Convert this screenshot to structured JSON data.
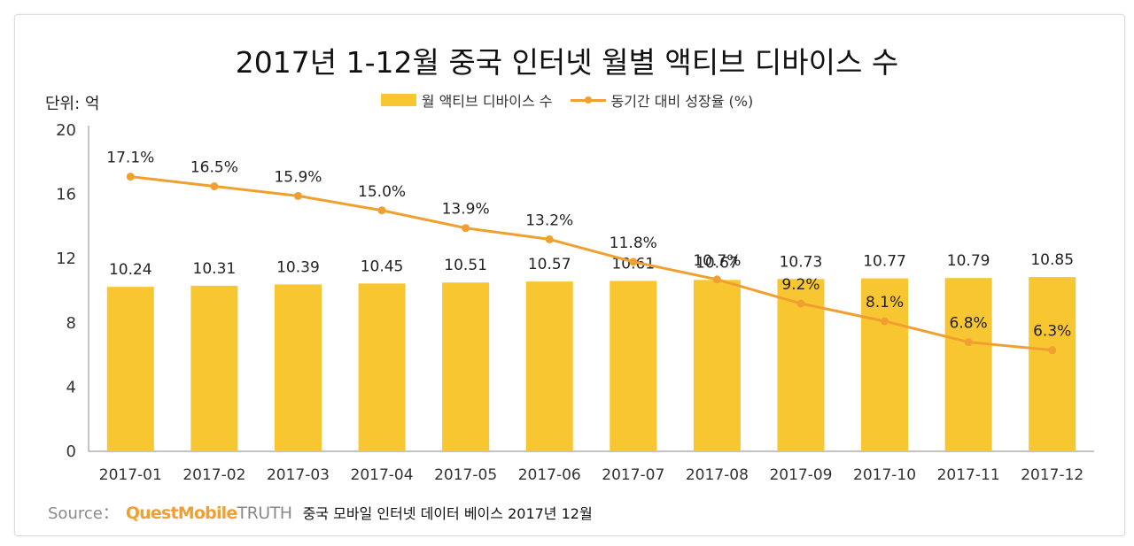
{
  "colors": {
    "bar": "#f8c630",
    "line": "#f0a030",
    "axis": "#888888",
    "brand": "#f0a030"
  },
  "chart_data": {
    "type": "bar",
    "title": "2017년 1-12월 중국 인터넷 월별 액티브 디바이스 수",
    "unit_label": "단위: 억",
    "categories": [
      "2017-01",
      "2017-02",
      "2017-03",
      "2017-04",
      "2017-05",
      "2017-06",
      "2017-07",
      "2017-08",
      "2017-09",
      "2017-10",
      "2017-11",
      "2017-12"
    ],
    "series": [
      {
        "name": "월 액티브 디바이스 수",
        "type": "bar",
        "values": [
          10.24,
          10.31,
          10.39,
          10.45,
          10.51,
          10.57,
          10.61,
          10.67,
          10.73,
          10.77,
          10.79,
          10.85
        ],
        "labels": [
          "10.24",
          "10.31",
          "10.39",
          "10.45",
          "10.51",
          "10.57",
          "10.61",
          "10.67",
          "10.73",
          "10.77",
          "10.79",
          "10.85"
        ]
      },
      {
        "name": "동기간 대비 성장율 (%)",
        "type": "line",
        "values": [
          17.1,
          16.5,
          15.9,
          15.0,
          13.9,
          13.2,
          11.8,
          10.7,
          9.2,
          8.1,
          6.8,
          6.3
        ],
        "labels": [
          "17.1%",
          "16.5%",
          "15.9%",
          "15.0%",
          "13.9%",
          "13.2%",
          "11.8%",
          "10.7%",
          "9.2%",
          "8.1%",
          "6.8%",
          "6.3%"
        ]
      }
    ],
    "yticks": [
      "0",
      "4",
      "8",
      "12",
      "16",
      "20"
    ],
    "ylim": [
      0,
      20
    ],
    "legend_position": "top-center"
  },
  "source": {
    "label": "Source：",
    "brand": "QuestMobile",
    "brand_suffix": "TRUTH",
    "description": "중국 모바일 인터넷 데이터 베이스 2017년 12월"
  }
}
